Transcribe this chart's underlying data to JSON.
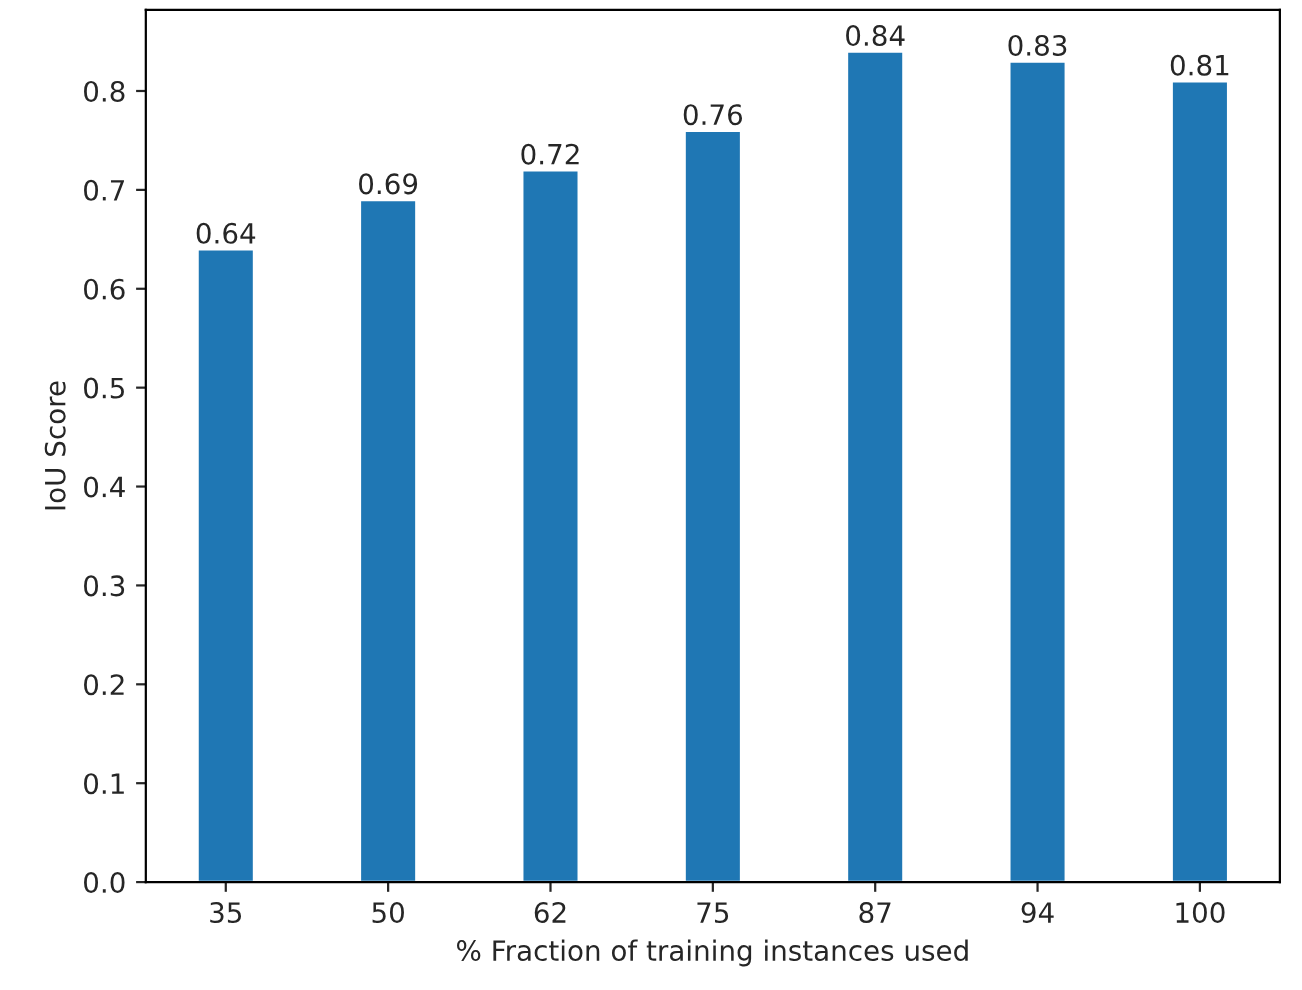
{
  "chart_data": {
    "type": "bar",
    "xlabel": "% Fraction of training instances used",
    "ylabel": "IoU Score",
    "categories": [
      "35",
      "50",
      "62",
      "75",
      "87",
      "94",
      "100"
    ],
    "values": [
      0.64,
      0.69,
      0.72,
      0.76,
      0.84,
      0.83,
      0.81
    ],
    "color": "#1f77b4",
    "data_labels": true,
    "ylim": [
      0,
      0.882
    ],
    "yticks": [
      {
        "value": 0,
        "label": "0.0"
      },
      0.1,
      0.2,
      0.3,
      0.4,
      0.5,
      0.6,
      0.7,
      0.8
    ],
    "grid": false
  }
}
